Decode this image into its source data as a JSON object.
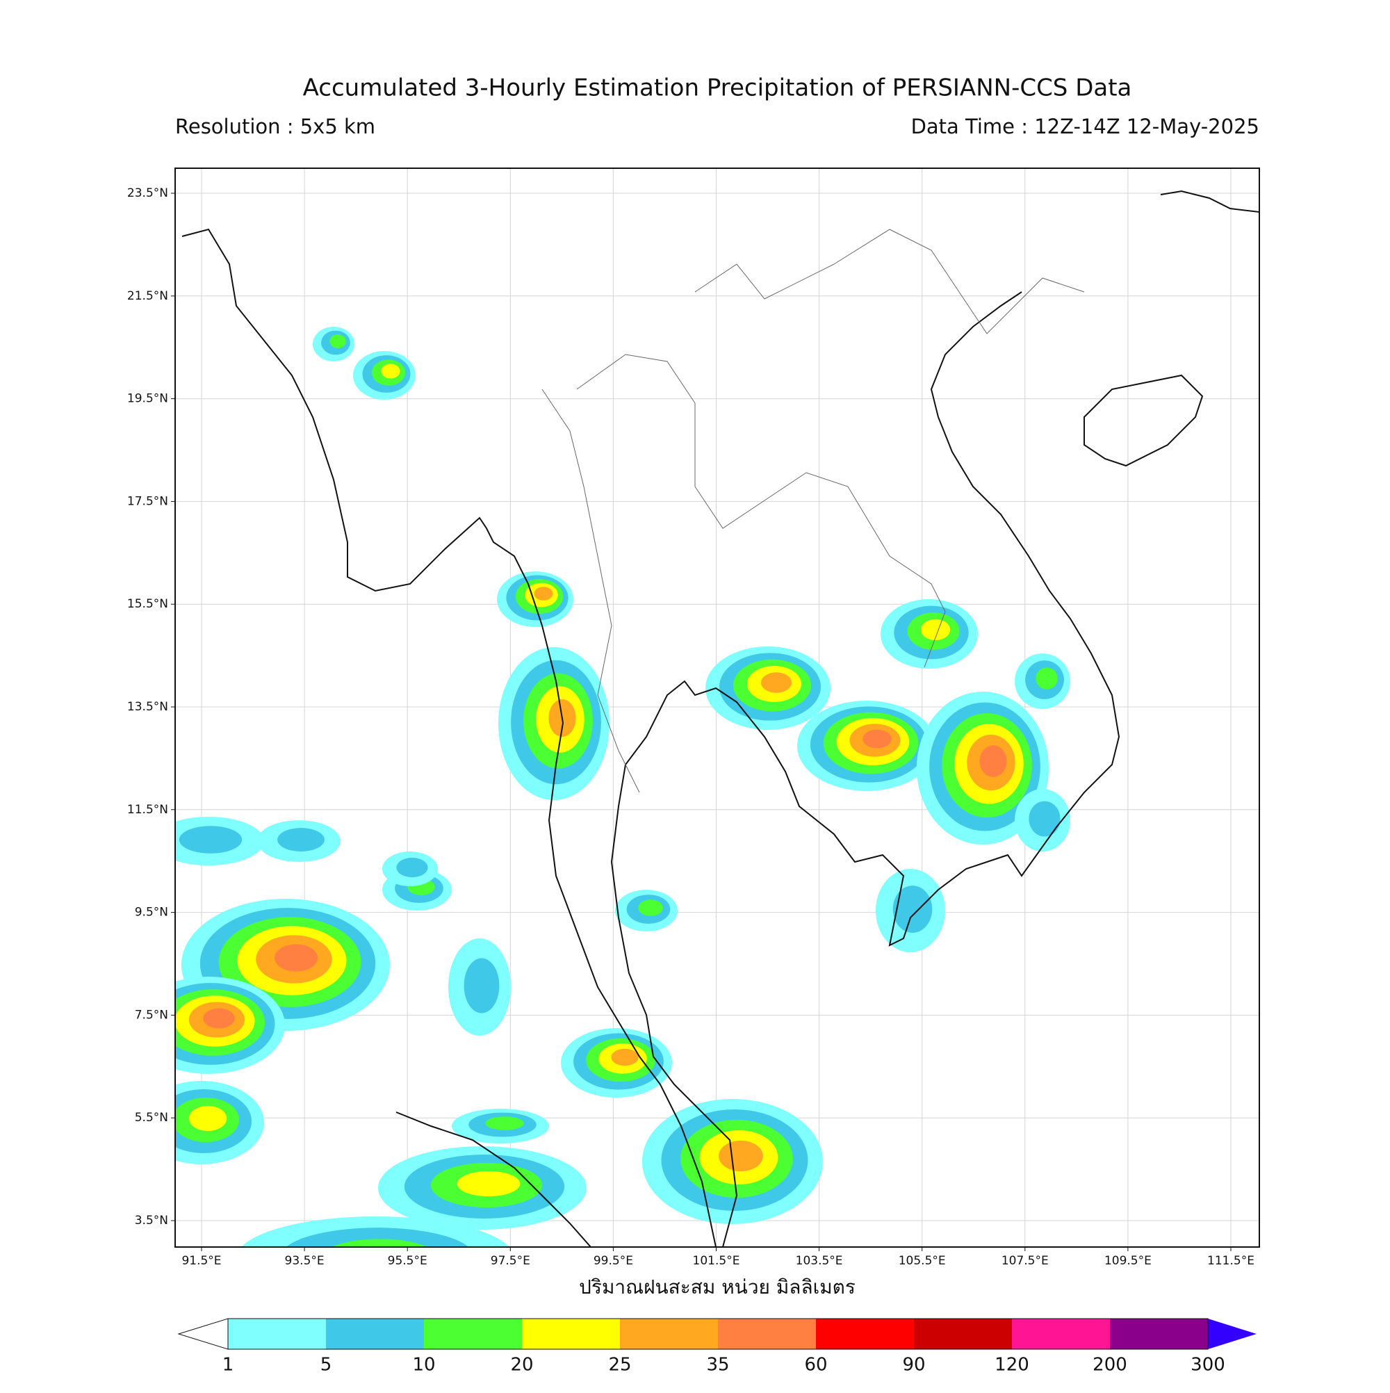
{
  "header": {
    "title": "Accumulated 3-Hourly Estimation Precipitation of PERSIANN-CCS Data",
    "resolution": "Resolution : 5x5 km",
    "data_time": "Data Time : 12Z-14Z 12-May-2025"
  },
  "map": {
    "lon_ticks": [
      "91.5°E",
      "93.5°E",
      "95.5°E",
      "97.5°E",
      "99.5°E",
      "101.5°E",
      "103.5°E",
      "105.5°E",
      "107.5°E",
      "109.5°E",
      "111.5°E"
    ],
    "lat_ticks": [
      "23.5°N",
      "21.5°N",
      "19.5°N",
      "17.5°N",
      "15.5°N",
      "13.5°N",
      "11.5°N",
      "9.5°N",
      "7.5°N",
      "5.5°N",
      "3.5°N"
    ],
    "x_label": "ปริมาณฝนสะสม หน่วย มิลลิเมตร"
  },
  "colorbar": {
    "labels": [
      "1",
      "5",
      "10",
      "20",
      "25",
      "35",
      "60",
      "90",
      "120",
      "200",
      "300"
    ],
    "colors": [
      "#80ffff",
      "#40c8e8",
      "#4cff33",
      "#ffff00",
      "#ffa820",
      "#ff8040",
      "#ff0000",
      "#cc0000",
      "#ff1493",
      "#8b008b",
      "#3300ff"
    ]
  }
}
